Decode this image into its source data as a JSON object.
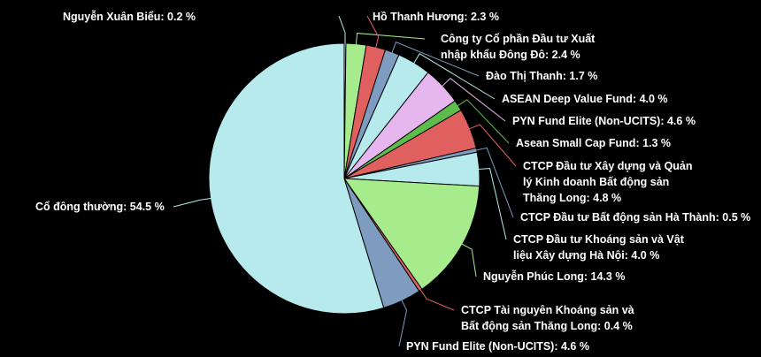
{
  "chart_data": {
    "type": "pie",
    "title": "",
    "legend": "none",
    "slices": [
      {
        "name": "Nguyễn Xuân Biểu",
        "value": 0.2,
        "label": "Nguyễn Xuân Biểu: 0.2 %",
        "color": "#b6eaec"
      },
      {
        "name": "Công ty Cổ phần Đầu tư Xuất nhập khẩu Đông Đô",
        "value": 2.4,
        "label": "Công ty Cổ phần Đầu tư Xuất|nhập khẩu Đông Đô: 2.4 %",
        "color": "#a6ec8c"
      },
      {
        "name": "Hồ Thanh Hương",
        "value": 2.3,
        "label": "Hồ Thanh Hương: 2.3 %",
        "color": "#e06060"
      },
      {
        "name": "Đào Thị Thanh",
        "value": 1.7,
        "label": "Đào Thị Thanh: 1.7 %",
        "color": "#7e9cc0"
      },
      {
        "name": "ASEAN Deep Value Fund",
        "value": 4.0,
        "label": "ASEAN Deep Value Fund: 4.0 %",
        "color": "#b6eaec"
      },
      {
        "name": "PYN Fund Elite (Non-UCITS)",
        "value": 4.6,
        "label": "PYN Fund Elite (Non-UCITS): 4.6 %",
        "color": "#e6b6ee"
      },
      {
        "name": "Asean Small Cap Fund",
        "value": 1.3,
        "label": "Asean Small Cap Fund: 1.3 %",
        "color": "#5cbc4c"
      },
      {
        "name": "CTCP Đầu tư Xây dựng và Quản lý Kinh doanh Bất động sản Thăng Long",
        "value": 4.8,
        "label": "CTCP Đầu tư Xây dựng và Quản|lý Kinh doanh Bất động sản|Thăng Long: 4.8 %",
        "color": "#e06060"
      },
      {
        "name": "CTCP Đầu tư Bất động sản Hà Thành",
        "value": 0.5,
        "label": "CTCP Đầu tư Bất động sản Hà Thành: 0.5 %",
        "color": "#7e9cc0"
      },
      {
        "name": "CTCP Đầu tư Khoáng sản và Vật liệu Xây dựng Hà Nội",
        "value": 4.0,
        "label": "CTCP Đầu tư Khoáng sản và Vật|liệu Xây dựng Hà Nội: 4.0 %",
        "color": "#b6eaec"
      },
      {
        "name": "Nguyễn Phúc Long",
        "value": 14.3,
        "label": "Nguyễn Phúc Long: 14.3 %",
        "color": "#a6ec8c"
      },
      {
        "name": "CTCP Tài nguyên Khoáng sản và Bất động sản Thăng Long",
        "value": 0.4,
        "label": "CTCP Tài nguyên Khoáng sản và|Bất động sản Thăng Long: 0.4 %",
        "color": "#e06060"
      },
      {
        "name": "PYN Fund Elite (Non-UCITS)",
        "value": 4.6,
        "label": "PYN Fund Elite (Non-UCITS): 4.6 %",
        "color": "#7e9cc0"
      },
      {
        "name": "Cổ đông thường",
        "value": 54.5,
        "label": "Cổ đông thường: 54.5 %",
        "color": "#b6eaec"
      }
    ]
  }
}
